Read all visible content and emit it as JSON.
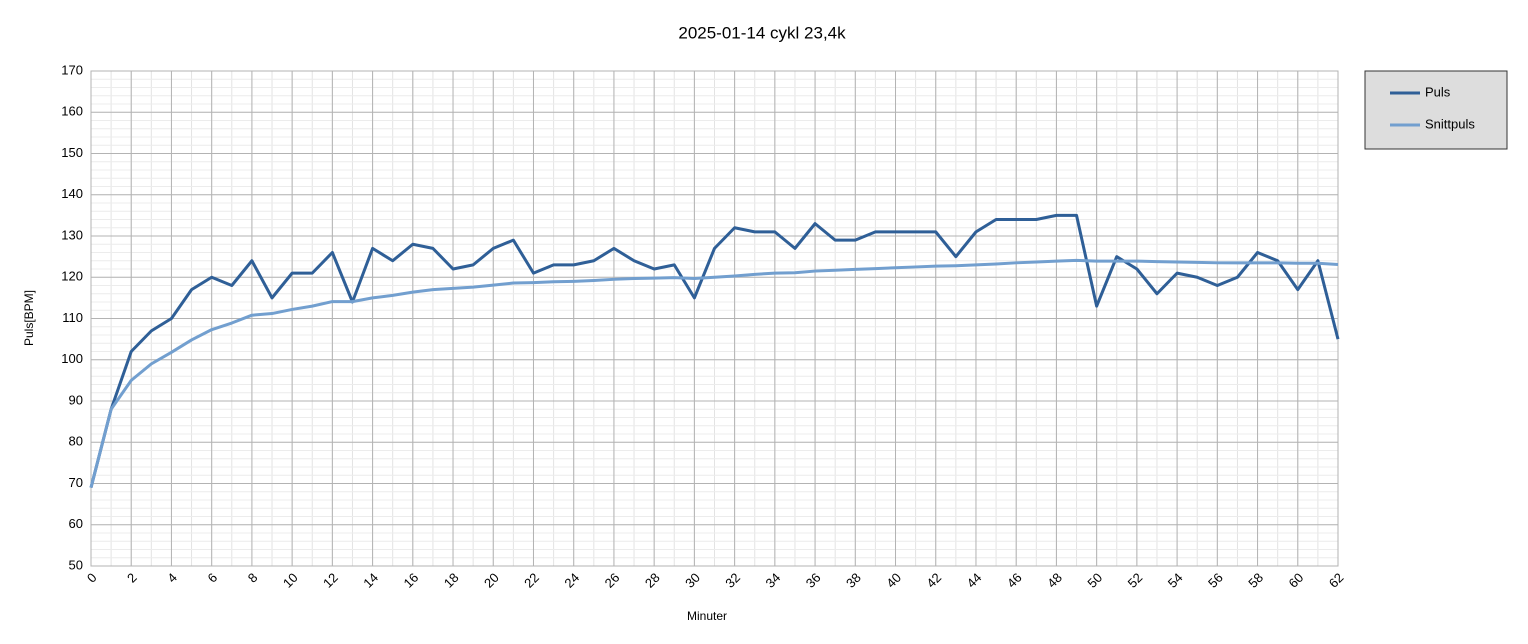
{
  "chart_data": {
    "type": "line",
    "title": "2025-01-14 cykl 23,4k",
    "x_label": "Minuter",
    "y_label": "Puls[BPM]",
    "x": [
      0,
      1,
      2,
      3,
      4,
      5,
      6,
      7,
      8,
      9,
      10,
      11,
      12,
      13,
      14,
      15,
      16,
      17,
      18,
      19,
      20,
      21,
      22,
      23,
      24,
      25,
      26,
      27,
      28,
      29,
      30,
      31,
      32,
      33,
      34,
      35,
      36,
      37,
      38,
      39,
      40,
      41,
      42,
      43,
      44,
      45,
      46,
      47,
      48,
      49,
      50,
      51,
      52,
      53,
      54,
      55,
      56,
      57,
      58,
      59,
      60,
      61,
      62
    ],
    "series": [
      {
        "name": "Puls",
        "color": "#2f5f97",
        "values": [
          69,
          88,
          102,
          107,
          110,
          117,
          120,
          118,
          124,
          115,
          121,
          121,
          126,
          114,
          127,
          124,
          128,
          127,
          122,
          123,
          127,
          129,
          121,
          123,
          123,
          124,
          127,
          124,
          122,
          123,
          115,
          127,
          132,
          131,
          131,
          127,
          133,
          129,
          129,
          131,
          131,
          131,
          131,
          125,
          131,
          134,
          134,
          134,
          135,
          135,
          113,
          125,
          122,
          116,
          121,
          120,
          118,
          120,
          126,
          124,
          117,
          124,
          105
        ]
      },
      {
        "name": "Snittpuls",
        "color": "#729fcf",
        "values": [
          69,
          88,
          95,
          99,
          101.8,
          104.8,
          107.3,
          108.9,
          110.8,
          111.2,
          112.2,
          113,
          114.1,
          114.1,
          115,
          115.6,
          116.4,
          117,
          117.3,
          117.6,
          118.1,
          118.6,
          118.7,
          118.9,
          119,
          119.2,
          119.5,
          119.7,
          119.8,
          119.9,
          119.7,
          120,
          120.3,
          120.7,
          121,
          121.1,
          121.5,
          121.7,
          121.9,
          122.1,
          122.3,
          122.5,
          122.7,
          122.8,
          123,
          123.2,
          123.5,
          123.7,
          123.9,
          124.1,
          123.9,
          123.9,
          123.9,
          123.8,
          123.7,
          123.6,
          123.5,
          123.5,
          123.5,
          123.5,
          123.4,
          123.4,
          123.1
        ]
      }
    ],
    "xlim": [
      0,
      62
    ],
    "xticks": [
      0,
      2,
      4,
      6,
      8,
      10,
      12,
      14,
      16,
      18,
      20,
      22,
      24,
      26,
      28,
      30,
      32,
      34,
      36,
      38,
      40,
      42,
      44,
      46,
      48,
      50,
      52,
      54,
      56,
      58,
      60,
      62
    ],
    "ylim": [
      50,
      170
    ],
    "yticks": [
      50,
      60,
      70,
      80,
      90,
      100,
      110,
      120,
      130,
      140,
      150,
      160,
      170
    ],
    "grid": true,
    "legend": "right"
  }
}
